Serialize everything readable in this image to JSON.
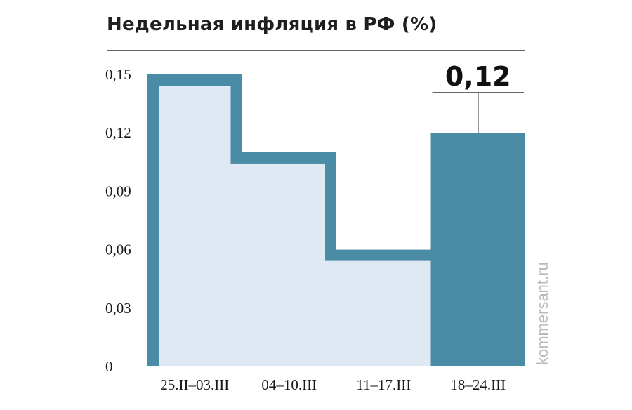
{
  "title": "Недельная инфляция в РФ (%)",
  "credit": "kommersant.ru",
  "colors": {
    "accent": "#4a8ba6",
    "fill_light": "#dee9f3",
    "text": "#1a1a1a",
    "rule": "#333333"
  },
  "chart_data": {
    "type": "bar",
    "title": "Недельная инфляция в РФ (%)",
    "xlabel": "",
    "ylabel": "",
    "categories": [
      "25.II–03.III",
      "04–10.III",
      "11–17.III",
      "18–24.III"
    ],
    "values": [
      0.15,
      0.11,
      0.06,
      0.12
    ],
    "ylim": [
      0,
      0.15
    ],
    "yticks": [
      "0",
      "0,03",
      "0,06",
      "0,09",
      "0,12",
      "0,15"
    ],
    "grid": false,
    "highlight": {
      "index": 3,
      "label": "0,12"
    }
  }
}
